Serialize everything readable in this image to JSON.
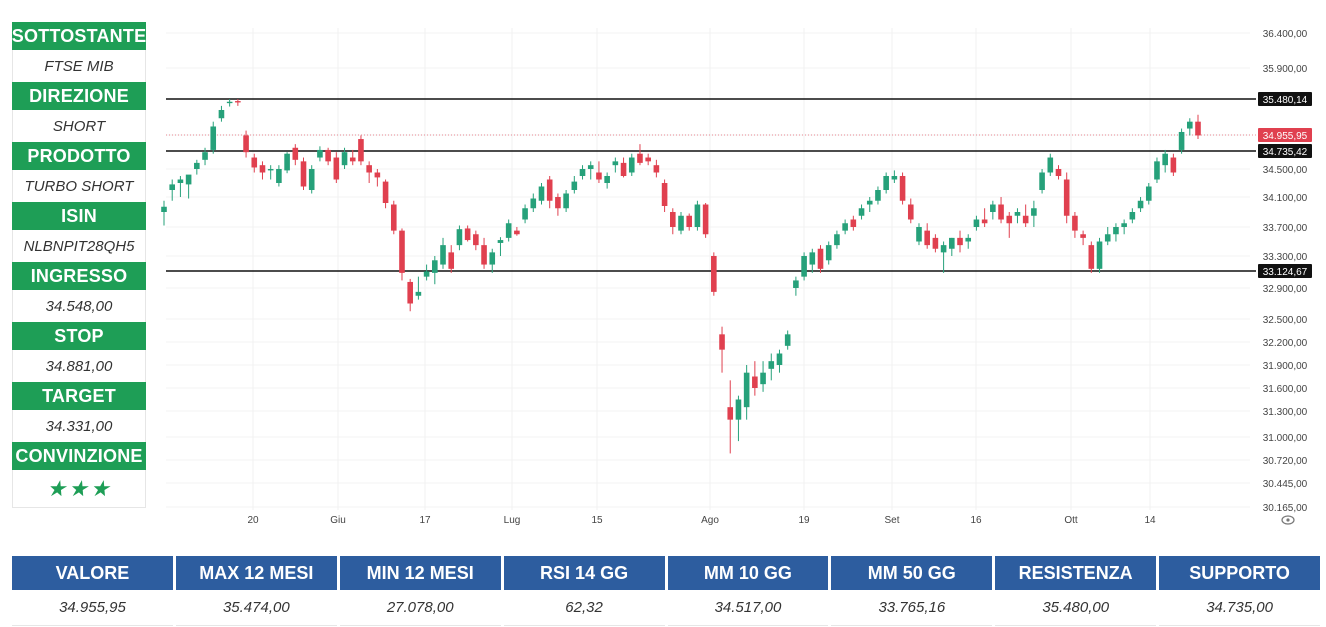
{
  "sidebar": [
    {
      "label": "SOTTOSTANTE",
      "value": "FTSE MIB"
    },
    {
      "label": "DIREZIONE",
      "value": "SHORT"
    },
    {
      "label": "PRODOTTO",
      "value": "TURBO SHORT"
    },
    {
      "label": "ISIN",
      "value": "NLBNPIT28QH5"
    },
    {
      "label": "INGRESSO",
      "value": "34.548,00"
    },
    {
      "label": "STOP",
      "value": "34.881,00"
    },
    {
      "label": "TARGET",
      "value": "34.331,00"
    },
    {
      "label": "CONVINZIONE",
      "value": "★★★"
    }
  ],
  "conviction_stars": 3,
  "table": {
    "headers": [
      "VALORE",
      "MAX 12 MESI",
      "MIN 12 MESI",
      "RSI 14 GG",
      "MM 10 GG",
      "MM 50 GG",
      "RESISTENZA",
      "SUPPORTO"
    ],
    "values": [
      "34.955,95",
      "35.474,00",
      "27.078,00",
      "62,32",
      "34.517,00",
      "33.765,16",
      "35.480,00",
      "34.735,00"
    ]
  },
  "colors": {
    "green": "#1e9e56",
    "blue": "#2d5d9f",
    "candle_up": "#26a17a",
    "candle_down": "#e0404f",
    "level_line": "#111111"
  },
  "chart_data": {
    "type": "candlestick",
    "y_ticks": [
      "36.400,00",
      "35.900,00",
      "35.480,14",
      "34.955,95",
      "34.735,42",
      "34.500,00",
      "34.100,00",
      "33.700,00",
      "33.300,00",
      "33.124,67",
      "32.900,00",
      "32.500,00",
      "32.200,00",
      "31.900,00",
      "31.600,00",
      "31.300,00",
      "31.000,00",
      "30.720,00",
      "30.445,00",
      "30.165,00"
    ],
    "x_ticks": [
      "20",
      "Giu",
      "17",
      "Lug",
      "15",
      "Ago",
      "19",
      "Set",
      "16",
      "Ott",
      "14"
    ],
    "levels": [
      {
        "value": 35480.14,
        "label": "35.480,14",
        "kind": "resistance"
      },
      {
        "value": 34735.42,
        "label": "34.735,42",
        "kind": "support"
      },
      {
        "value": 33124.67,
        "label": "33.124,67",
        "kind": "support"
      }
    ],
    "last_price": {
      "value": 34955.95,
      "label": "34.955,95"
    },
    "candles": [
      {
        "o": 33900,
        "h": 34050,
        "l": 33720,
        "c": 33970
      },
      {
        "o": 34200,
        "h": 34350,
        "l": 34050,
        "c": 34280
      },
      {
        "o": 34300,
        "h": 34400,
        "l": 34100,
        "c": 34350
      },
      {
        "o": 34280,
        "h": 34380,
        "l": 34080,
        "c": 34420
      },
      {
        "o": 34500,
        "h": 34620,
        "l": 34420,
        "c": 34580
      },
      {
        "o": 34620,
        "h": 34780,
        "l": 34550,
        "c": 34720
      },
      {
        "o": 34750,
        "h": 35150,
        "l": 34700,
        "c": 35080
      },
      {
        "o": 35200,
        "h": 35380,
        "l": 35150,
        "c": 35320
      },
      {
        "o": 35420,
        "h": 35480,
        "l": 35370,
        "c": 35440
      },
      {
        "o": 35450,
        "h": 35480,
        "l": 35380,
        "c": 35430
      },
      {
        "o": 34950,
        "h": 35020,
        "l": 34650,
        "c": 34720
      },
      {
        "o": 34650,
        "h": 34700,
        "l": 34450,
        "c": 34520
      },
      {
        "o": 34550,
        "h": 34600,
        "l": 34350,
        "c": 34450
      },
      {
        "o": 34480,
        "h": 34550,
        "l": 34350,
        "c": 34500
      },
      {
        "o": 34300,
        "h": 34550,
        "l": 34250,
        "c": 34500
      },
      {
        "o": 34480,
        "h": 34720,
        "l": 34440,
        "c": 34700
      },
      {
        "o": 34780,
        "h": 34830,
        "l": 34550,
        "c": 34620
      },
      {
        "o": 34600,
        "h": 34650,
        "l": 34200,
        "c": 34250
      },
      {
        "o": 34200,
        "h": 34550,
        "l": 34150,
        "c": 34500
      },
      {
        "o": 34650,
        "h": 34800,
        "l": 34600,
        "c": 34750
      },
      {
        "o": 34750,
        "h": 34780,
        "l": 34550,
        "c": 34600
      },
      {
        "o": 34650,
        "h": 34720,
        "l": 34300,
        "c": 34350
      },
      {
        "o": 34550,
        "h": 34780,
        "l": 34500,
        "c": 34720
      },
      {
        "o": 34650,
        "h": 34750,
        "l": 34550,
        "c": 34600
      },
      {
        "o": 34900,
        "h": 34950,
        "l": 34550,
        "c": 34600
      },
      {
        "o": 34550,
        "h": 34600,
        "l": 34300,
        "c": 34450
      },
      {
        "o": 34450,
        "h": 34500,
        "l": 34250,
        "c": 34380
      },
      {
        "o": 34320,
        "h": 34350,
        "l": 33950,
        "c": 34020
      },
      {
        "o": 34000,
        "h": 34050,
        "l": 33600,
        "c": 33650
      },
      {
        "o": 33650,
        "h": 33680,
        "l": 33000,
        "c": 33100
      },
      {
        "o": 32980,
        "h": 33020,
        "l": 32600,
        "c": 32700
      },
      {
        "o": 32800,
        "h": 33050,
        "l": 32750,
        "c": 32850
      },
      {
        "o": 33050,
        "h": 33200,
        "l": 33000,
        "c": 33120
      },
      {
        "o": 33100,
        "h": 33300,
        "l": 32950,
        "c": 33250
      },
      {
        "o": 33200,
        "h": 33550,
        "l": 33150,
        "c": 33450
      },
      {
        "o": 33350,
        "h": 33450,
        "l": 33100,
        "c": 33150
      },
      {
        "o": 33450,
        "h": 33720,
        "l": 33380,
        "c": 33670
      },
      {
        "o": 33680,
        "h": 33720,
        "l": 33500,
        "c": 33520
      },
      {
        "o": 33600,
        "h": 33650,
        "l": 33380,
        "c": 33450
      },
      {
        "o": 33450,
        "h": 33550,
        "l": 33150,
        "c": 33200
      },
      {
        "o": 33200,
        "h": 33400,
        "l": 33100,
        "c": 33350
      },
      {
        "o": 33480,
        "h": 33560,
        "l": 33300,
        "c": 33520
      },
      {
        "o": 33550,
        "h": 33800,
        "l": 33500,
        "c": 33750
      },
      {
        "o": 33650,
        "h": 33700,
        "l": 33580,
        "c": 33600
      },
      {
        "o": 33800,
        "h": 34000,
        "l": 33750,
        "c": 33950
      },
      {
        "o": 33950,
        "h": 34150,
        "l": 33900,
        "c": 34080
      },
      {
        "o": 34050,
        "h": 34300,
        "l": 34000,
        "c": 34250
      },
      {
        "o": 34350,
        "h": 34400,
        "l": 33950,
        "c": 34050
      },
      {
        "o": 34100,
        "h": 34150,
        "l": 33850,
        "c": 33950
      },
      {
        "o": 33950,
        "h": 34200,
        "l": 33900,
        "c": 34150
      },
      {
        "o": 34200,
        "h": 34400,
        "l": 34150,
        "c": 34320
      },
      {
        "o": 34400,
        "h": 34550,
        "l": 34350,
        "c": 34500
      },
      {
        "o": 34500,
        "h": 34600,
        "l": 34350,
        "c": 34550
      },
      {
        "o": 34450,
        "h": 34600,
        "l": 34300,
        "c": 34350
      },
      {
        "o": 34300,
        "h": 34450,
        "l": 34220,
        "c": 34400
      },
      {
        "o": 34550,
        "h": 34650,
        "l": 34450,
        "c": 34600
      },
      {
        "o": 34580,
        "h": 34650,
        "l": 34380,
        "c": 34400
      },
      {
        "o": 34450,
        "h": 34700,
        "l": 34400,
        "c": 34650
      },
      {
        "o": 34700,
        "h": 34830,
        "l": 34550,
        "c": 34580
      },
      {
        "o": 34650,
        "h": 34700,
        "l": 34550,
        "c": 34600
      },
      {
        "o": 34550,
        "h": 34620,
        "l": 34380,
        "c": 34450
      },
      {
        "o": 34300,
        "h": 34350,
        "l": 33900,
        "c": 33980
      },
      {
        "o": 33900,
        "h": 33950,
        "l": 33600,
        "c": 33700
      },
      {
        "o": 33650,
        "h": 33900,
        "l": 33600,
        "c": 33850
      },
      {
        "o": 33850,
        "h": 33880,
        "l": 33650,
        "c": 33700
      },
      {
        "o": 33700,
        "h": 34050,
        "l": 33650,
        "c": 34000
      },
      {
        "o": 34000,
        "h": 34020,
        "l": 33550,
        "c": 33600
      },
      {
        "o": 33300,
        "h": 33350,
        "l": 32800,
        "c": 32850
      },
      {
        "o": 32300,
        "h": 32400,
        "l": 31800,
        "c": 32100
      },
      {
        "o": 31350,
        "h": 31700,
        "l": 30800,
        "c": 31200
      },
      {
        "o": 31200,
        "h": 31500,
        "l": 30950,
        "c": 31450
      },
      {
        "o": 31350,
        "h": 31900,
        "l": 31200,
        "c": 31800
      },
      {
        "o": 31750,
        "h": 31950,
        "l": 31500,
        "c": 31600
      },
      {
        "o": 31650,
        "h": 31950,
        "l": 31550,
        "c": 31800
      },
      {
        "o": 31850,
        "h": 32050,
        "l": 31700,
        "c": 31950
      },
      {
        "o": 31900,
        "h": 32100,
        "l": 31800,
        "c": 32050
      },
      {
        "o": 32150,
        "h": 32350,
        "l": 32100,
        "c": 32300
      },
      {
        "o": 32900,
        "h": 33050,
        "l": 32800,
        "c": 33000
      },
      {
        "o": 33050,
        "h": 33350,
        "l": 33000,
        "c": 33300
      },
      {
        "o": 33200,
        "h": 33400,
        "l": 33100,
        "c": 33350
      },
      {
        "o": 33400,
        "h": 33450,
        "l": 33100,
        "c": 33150
      },
      {
        "o": 33250,
        "h": 33500,
        "l": 33200,
        "c": 33450
      },
      {
        "o": 33450,
        "h": 33650,
        "l": 33400,
        "c": 33600
      },
      {
        "o": 33650,
        "h": 33800,
        "l": 33600,
        "c": 33750
      },
      {
        "o": 33800,
        "h": 33850,
        "l": 33650,
        "c": 33700
      },
      {
        "o": 33850,
        "h": 34000,
        "l": 33800,
        "c": 33950
      },
      {
        "o": 34000,
        "h": 34100,
        "l": 33900,
        "c": 34050
      },
      {
        "o": 34050,
        "h": 34250,
        "l": 34000,
        "c": 34200
      },
      {
        "o": 34200,
        "h": 34450,
        "l": 34150,
        "c": 34400
      },
      {
        "o": 34350,
        "h": 34480,
        "l": 34300,
        "c": 34400
      },
      {
        "o": 34400,
        "h": 34450,
        "l": 34000,
        "c": 34050
      },
      {
        "o": 34000,
        "h": 34080,
        "l": 33750,
        "c": 33800
      },
      {
        "o": 33500,
        "h": 33750,
        "l": 33450,
        "c": 33700
      },
      {
        "o": 33650,
        "h": 33750,
        "l": 33400,
        "c": 33450
      },
      {
        "o": 33550,
        "h": 33600,
        "l": 33350,
        "c": 33400
      },
      {
        "o": 33350,
        "h": 33500,
        "l": 33100,
        "c": 33450
      },
      {
        "o": 33400,
        "h": 33550,
        "l": 33300,
        "c": 33550
      },
      {
        "o": 33550,
        "h": 33650,
        "l": 33350,
        "c": 33450
      },
      {
        "o": 33500,
        "h": 33600,
        "l": 33400,
        "c": 33550
      },
      {
        "o": 33700,
        "h": 33850,
        "l": 33650,
        "c": 33800
      },
      {
        "o": 33800,
        "h": 33950,
        "l": 33700,
        "c": 33750
      },
      {
        "o": 33900,
        "h": 34050,
        "l": 33800,
        "c": 34000
      },
      {
        "o": 34000,
        "h": 34100,
        "l": 33750,
        "c": 33800
      },
      {
        "o": 33850,
        "h": 33900,
        "l": 33550,
        "c": 33750
      },
      {
        "o": 33850,
        "h": 33950,
        "l": 33750,
        "c": 33900
      },
      {
        "o": 33850,
        "h": 34000,
        "l": 33700,
        "c": 33750
      },
      {
        "o": 33850,
        "h": 34050,
        "l": 33700,
        "c": 33950
      },
      {
        "o": 34200,
        "h": 34500,
        "l": 34150,
        "c": 34450
      },
      {
        "o": 34450,
        "h": 34700,
        "l": 34400,
        "c": 34650
      },
      {
        "o": 34500,
        "h": 34550,
        "l": 34350,
        "c": 34400
      },
      {
        "o": 34350,
        "h": 34450,
        "l": 33750,
        "c": 33850
      },
      {
        "o": 33850,
        "h": 33900,
        "l": 33550,
        "c": 33650
      },
      {
        "o": 33600,
        "h": 33650,
        "l": 33450,
        "c": 33550
      },
      {
        "o": 33450,
        "h": 33500,
        "l": 33100,
        "c": 33150
      },
      {
        "o": 33150,
        "h": 33550,
        "l": 33100,
        "c": 33500
      },
      {
        "o": 33500,
        "h": 33700,
        "l": 33450,
        "c": 33600
      },
      {
        "o": 33600,
        "h": 33750,
        "l": 33500,
        "c": 33700
      },
      {
        "o": 33700,
        "h": 33800,
        "l": 33600,
        "c": 33750
      },
      {
        "o": 33800,
        "h": 33950,
        "l": 33750,
        "c": 33900
      },
      {
        "o": 33950,
        "h": 34100,
        "l": 33900,
        "c": 34050
      },
      {
        "o": 34050,
        "h": 34300,
        "l": 34000,
        "c": 34250
      },
      {
        "o": 34350,
        "h": 34650,
        "l": 34300,
        "c": 34600
      },
      {
        "o": 34550,
        "h": 34750,
        "l": 34450,
        "c": 34700
      },
      {
        "o": 34650,
        "h": 34700,
        "l": 34400,
        "c": 34450
      },
      {
        "o": 34750,
        "h": 35050,
        "l": 34700,
        "c": 35000
      },
      {
        "o": 35050,
        "h": 35200,
        "l": 34950,
        "c": 35150
      },
      {
        "o": 35150,
        "h": 35250,
        "l": 34900,
        "c": 34950
      }
    ]
  }
}
